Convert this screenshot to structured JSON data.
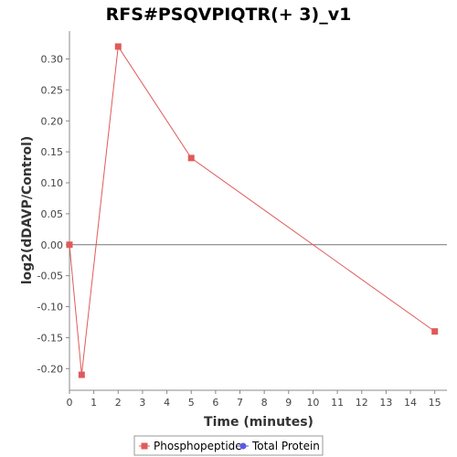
{
  "chart_data": {
    "type": "line",
    "title": "RFS#PSQVPIQTR(+ 3)_v1",
    "xlabel": "Time (minutes)",
    "ylabel": "log2(dDAVP/Control)",
    "xlim": [
      0,
      15.5
    ],
    "ylim": [
      -0.235,
      0.345
    ],
    "x_ticks": [
      0,
      1,
      2,
      3,
      4,
      5,
      6,
      7,
      8,
      9,
      10,
      11,
      12,
      13,
      14,
      15
    ],
    "y_ticks": [
      -0.2,
      -0.15,
      -0.1,
      -0.05,
      0.0,
      0.05,
      0.1,
      0.15,
      0.2,
      0.25,
      0.3
    ],
    "y_tick_labels": [
      "-0.20",
      "-0.15",
      "-0.10",
      "-0.05",
      "0.00",
      "0.05",
      "0.10",
      "0.15",
      "0.20",
      "0.25",
      "0.30"
    ],
    "grid": false,
    "zero_line": true,
    "legend_position": "bottom",
    "series": [
      {
        "name": "Phosphopeptide",
        "color": "#e05a5a",
        "marker": "square",
        "x": [
          0,
          0.5,
          2,
          5,
          15
        ],
        "y": [
          0.0,
          -0.21,
          0.32,
          0.14,
          -0.14
        ]
      },
      {
        "name": "Total Protein",
        "color": "#5a5ae6",
        "marker": "circle",
        "x": [],
        "y": []
      }
    ]
  }
}
